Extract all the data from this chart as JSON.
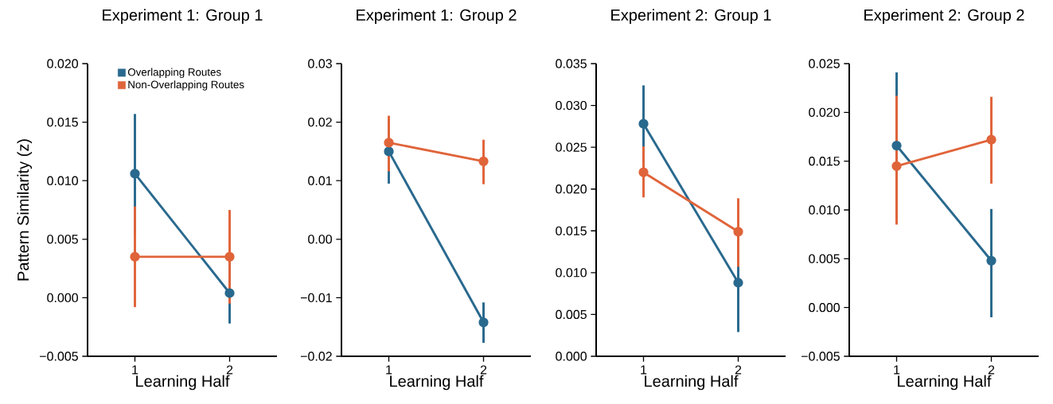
{
  "chart_data": [
    {
      "type": "line",
      "title": "Experiment 1: Group 1",
      "xlabel": "Learning Half",
      "ylabel": "Pattern Similarity (z)",
      "categories": [
        "1",
        "2"
      ],
      "series": [
        {
          "name": "Overlapping Routes",
          "color": "#29698e",
          "values": [
            0.0106,
            0.0004
          ],
          "errors": [
            [
              0.0055,
              0.0157
            ],
            [
              -0.0022,
              0.003
            ]
          ]
        },
        {
          "name": "Non-Overlapping Routes",
          "color": "#e0643a",
          "values": [
            0.0035,
            0.0035
          ],
          "errors": [
            [
              -0.0008,
              0.0078
            ],
            [
              -0.0005,
              0.0075
            ]
          ]
        }
      ],
      "ylim": [
        -0.005,
        0.02
      ],
      "yticks": [
        {
          "value": -0.005,
          "label": "−0.005"
        },
        {
          "value": 0.0,
          "label": "0.000"
        },
        {
          "value": 0.005,
          "label": "0.005"
        },
        {
          "value": 0.01,
          "label": "0.010"
        },
        {
          "value": 0.015,
          "label": "0.015"
        },
        {
          "value": 0.02,
          "label": "0.020"
        }
      ],
      "legend": "top",
      "marker": "circle",
      "line_style": "solid"
    },
    {
      "type": "line",
      "title": "Experiment 1: Group 2",
      "xlabel": "Learning Half",
      "categories": [
        "1",
        "2"
      ],
      "series": [
        {
          "color": "#29698e",
          "values": [
            0.015,
            -0.0142
          ],
          "errors": [
            [
              0.0095,
              0.0205
            ],
            [
              -0.0177,
              -0.0108
            ]
          ]
        },
        {
          "color": "#e0643a",
          "values": [
            0.0165,
            0.0133
          ],
          "errors": [
            [
              0.0116,
              0.0211
            ],
            [
              0.0094,
              0.017
            ]
          ]
        }
      ],
      "ylim": [
        -0.02,
        0.03
      ],
      "yticks": [
        {
          "value": -0.02,
          "label": "−0.02"
        },
        {
          "value": -0.01,
          "label": "−0.01"
        },
        {
          "value": 0.0,
          "label": "0.00"
        },
        {
          "value": 0.01,
          "label": "0.01"
        },
        {
          "value": 0.02,
          "label": "0.02"
        },
        {
          "value": 0.03,
          "label": "0.03"
        }
      ],
      "marker": "circle",
      "line_style": "solid"
    },
    {
      "type": "line",
      "title": "Experiment 2: Group 1",
      "xlabel": "Learning Half",
      "categories": [
        "1",
        "2"
      ],
      "series": [
        {
          "color": "#29698e",
          "values": [
            0.0278,
            0.0088
          ],
          "errors": [
            [
              0.0232,
              0.0324
            ],
            [
              0.0029,
              0.0147
            ]
          ]
        },
        {
          "color": "#e0643a",
          "values": [
            0.022,
            0.0149
          ],
          "errors": [
            [
              0.019,
              0.0251
            ],
            [
              0.0107,
              0.0189
            ]
          ]
        }
      ],
      "ylim": [
        0.0,
        0.035
      ],
      "yticks": [
        {
          "value": 0.0,
          "label": "0.000"
        },
        {
          "value": 0.005,
          "label": "0.005"
        },
        {
          "value": 0.01,
          "label": "0.010"
        },
        {
          "value": 0.015,
          "label": "0.015"
        },
        {
          "value": 0.02,
          "label": "0.020"
        },
        {
          "value": 0.025,
          "label": "0.025"
        },
        {
          "value": 0.03,
          "label": "0.030"
        },
        {
          "value": 0.035,
          "label": "0.035"
        }
      ],
      "marker": "circle",
      "line_style": "solid"
    },
    {
      "type": "line",
      "title": "Experiment 2: Group 2",
      "xlabel": "Learning Half",
      "categories": [
        "1",
        "2"
      ],
      "series": [
        {
          "color": "#29698e",
          "values": [
            0.0166,
            0.0048
          ],
          "errors": [
            [
              0.0091,
              0.0241
            ],
            [
              -0.001,
              0.0101
            ]
          ]
        },
        {
          "color": "#e0643a",
          "values": [
            0.0145,
            0.0172
          ],
          "errors": [
            [
              0.0085,
              0.0217
            ],
            [
              0.0127,
              0.0216
            ]
          ]
        }
      ],
      "ylim": [
        -0.005,
        0.025
      ],
      "yticks": [
        {
          "value": -0.005,
          "label": "−0.005"
        },
        {
          "value": 0.0,
          "label": "0.000"
        },
        {
          "value": 0.005,
          "label": "0.005"
        },
        {
          "value": 0.01,
          "label": "0.010"
        },
        {
          "value": 0.015,
          "label": "0.015"
        },
        {
          "value": 0.02,
          "label": "0.020"
        },
        {
          "value": 0.025,
          "label": "0.025"
        }
      ],
      "marker": "circle",
      "line_style": "solid"
    }
  ]
}
